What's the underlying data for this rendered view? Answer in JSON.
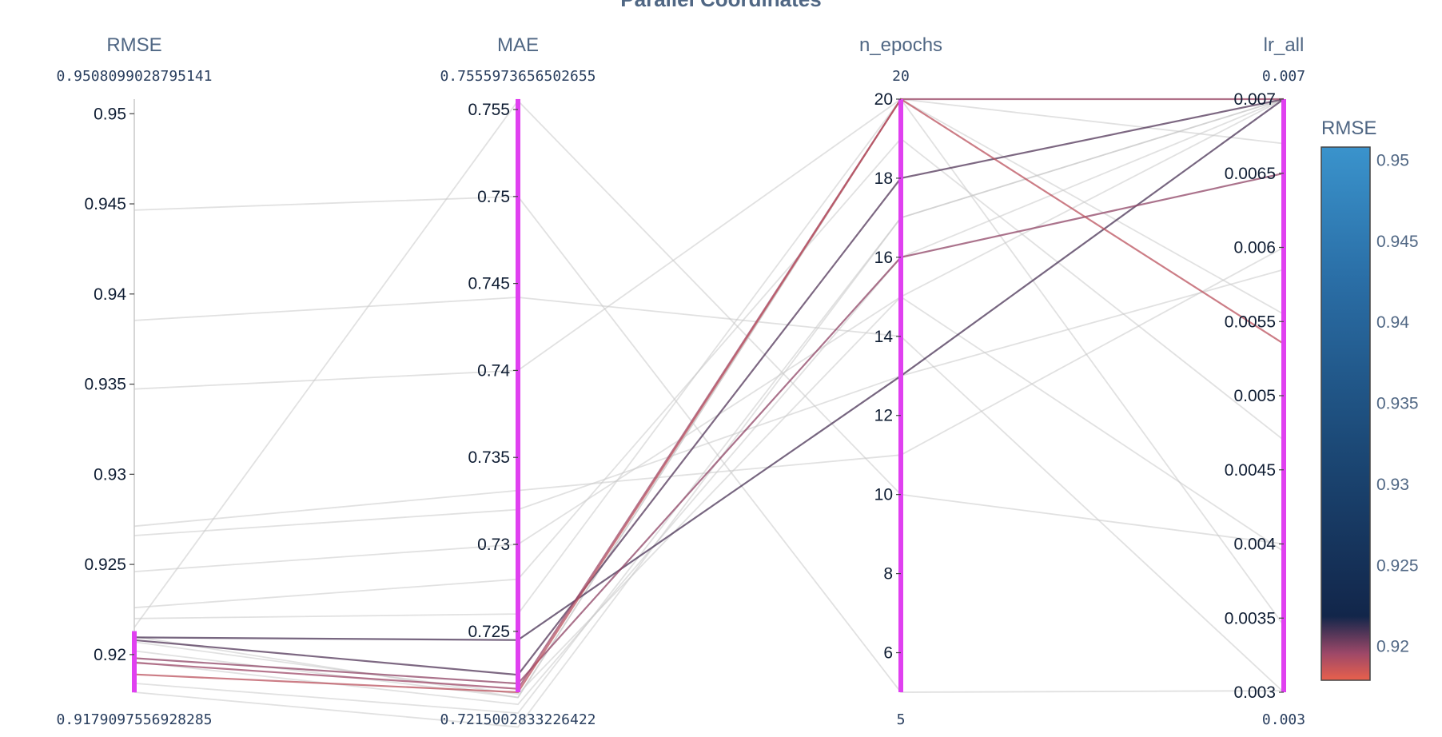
{
  "chart_data": {
    "type": "parallel_coordinates",
    "title": "Parallel Coordinates",
    "dimensions": [
      {
        "key": "RMSE",
        "label": "RMSE",
        "range": [
          0.9179097556928285,
          0.9508099028795141
        ],
        "range_top_label": "0.9508099028795141",
        "range_bottom_label": "0.9179097556928285",
        "ticks": [
          0.92,
          0.925,
          0.93,
          0.935,
          0.94,
          0.945,
          0.95
        ],
        "tick_labels": [
          "0.92",
          "0.925",
          "0.93",
          "0.935",
          "0.94",
          "0.945",
          "0.95"
        ],
        "constraint": [
          0.9179,
          0.9213
        ]
      },
      {
        "key": "MAE",
        "label": "MAE",
        "range": [
          0.7215002833226422,
          0.7555973656502655
        ],
        "range_top_label": "0.7555973656502655",
        "range_bottom_label": "0.7215002833226422",
        "ticks": [
          0.725,
          0.73,
          0.735,
          0.74,
          0.745,
          0.75,
          0.755
        ],
        "tick_labels": [
          "0.725",
          "0.73",
          "0.735",
          "0.74",
          "0.745",
          "0.75",
          "0.755"
        ],
        "constraint": [
          0.7215,
          0.7556
        ]
      },
      {
        "key": "n_epochs",
        "label": "n_epochs",
        "range": [
          5,
          20
        ],
        "range_top_label": "20",
        "range_bottom_label": "5",
        "ticks": [
          6,
          8,
          10,
          12,
          14,
          16,
          18,
          20
        ],
        "tick_labels": [
          "6",
          "8",
          "10",
          "12",
          "14",
          "16",
          "18",
          "20"
        ],
        "constraint": [
          5,
          20
        ]
      },
      {
        "key": "lr_all",
        "label": "lr_all",
        "range": [
          0.003,
          0.007
        ],
        "range_top_label": "0.007",
        "range_bottom_label": "0.003",
        "ticks": [
          0.003,
          0.0035,
          0.004,
          0.0045,
          0.005,
          0.0055,
          0.006,
          0.0065,
          0.007
        ],
        "tick_labels": [
          "0.003",
          "0.0035",
          "0.004",
          "0.0045",
          "0.005",
          "0.0055",
          "0.006",
          "0.0065",
          "0.007"
        ],
        "constraint": [
          0.003,
          0.007
        ]
      }
    ],
    "colorbar": {
      "title": "RMSE",
      "range": [
        0.9179097556928285,
        0.9508099028795141
      ],
      "ticks": [
        0.92,
        0.925,
        0.93,
        0.935,
        0.94,
        0.945,
        0.95
      ],
      "tick_labels": [
        "0.92",
        "0.925",
        "0.93",
        "0.935",
        "0.94",
        "0.945",
        "0.95"
      ],
      "stops": [
        "#e8604c",
        "#9e4868",
        "#12264a",
        "#1c4a78",
        "#2a6ea6",
        "#3a93cc"
      ]
    },
    "highlight_color": "#e040f0",
    "filtered_line_color": "#c8c8c8",
    "lines": [
      {
        "RMSE": 0.94465,
        "MAE": 0.75,
        "n_epochs": 5,
        "lr_all": 0.00301
      },
      {
        "RMSE": 0.93853,
        "MAE": 0.7442,
        "n_epochs": 14,
        "lr_all": 0.003
      },
      {
        "RMSE": 0.93473,
        "MAE": 0.74,
        "n_epochs": 20,
        "lr_all": 0.00345
      },
      {
        "RMSE": 0.92712,
        "MAE": 0.7331,
        "n_epochs": 11,
        "lr_all": 0.006
      },
      {
        "RMSE": 0.9266,
        "MAE": 0.732,
        "n_epochs": 13,
        "lr_all": 0.00585
      },
      {
        "RMSE": 0.9246,
        "MAE": 0.73,
        "n_epochs": 15,
        "lr_all": 0.00395
      },
      {
        "RMSE": 0.9226,
        "MAE": 0.728,
        "n_epochs": 19,
        "lr_all": 0.0047
      },
      {
        "RMSE": 0.922,
        "MAE": 0.726,
        "n_epochs": 20,
        "lr_all": 0.00555
      },
      {
        "RMSE": 0.9215,
        "MAE": 0.7555,
        "n_epochs": 10,
        "lr_all": 0.004
      },
      {
        "RMSE": 0.92095,
        "MAE": 0.7245,
        "n_epochs": 13,
        "lr_all": 0.007
      },
      {
        "RMSE": 0.9208,
        "MAE": 0.7225,
        "n_epochs": 18,
        "lr_all": 0.007
      },
      {
        "RMSE": 0.921,
        "MAE": 0.7212,
        "n_epochs": 20,
        "lr_all": 0.0067
      },
      {
        "RMSE": 0.9207,
        "MAE": 0.7214,
        "n_epochs": 15,
        "lr_all": 0.007
      },
      {
        "RMSE": 0.9202,
        "MAE": 0.7212,
        "n_epochs": 20,
        "lr_all": 0.007
      },
      {
        "RMSE": 0.9198,
        "MAE": 0.722,
        "n_epochs": 16,
        "lr_all": 0.0065
      },
      {
        "RMSE": 0.91955,
        "MAE": 0.7217,
        "n_epochs": 20,
        "lr_all": 0.007
      },
      {
        "RMSE": 0.9196,
        "MAE": 0.7208,
        "n_epochs": 16,
        "lr_all": 0.007
      },
      {
        "RMSE": 0.9189,
        "MAE": 0.7215,
        "n_epochs": 20,
        "lr_all": 0.00535
      },
      {
        "RMSE": 0.9184,
        "MAE": 0.7203,
        "n_epochs": 17,
        "lr_all": 0.007
      },
      {
        "RMSE": 0.91791,
        "MAE": 0.7195,
        "n_epochs": 17,
        "lr_all": 0.007
      }
    ]
  }
}
